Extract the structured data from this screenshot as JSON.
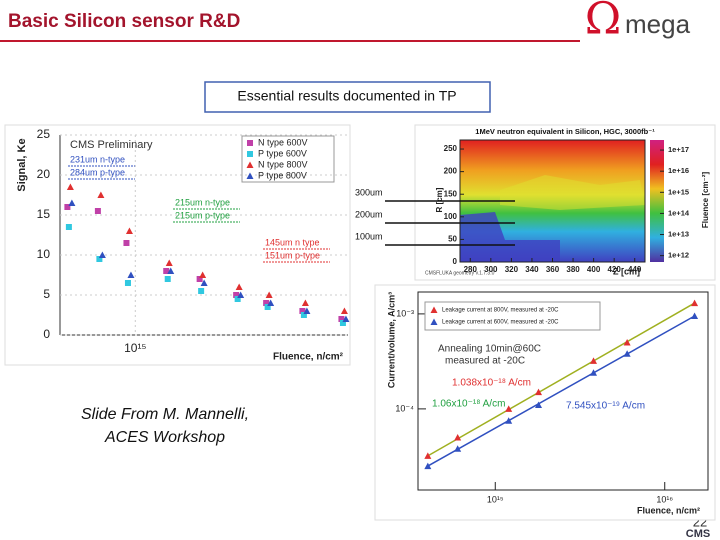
{
  "header": {
    "title": "Basic Silicon sensor R&D",
    "logo_symbol": "Ω",
    "logo_text": "mega"
  },
  "callout": "Essential results documented in TP",
  "credit": [
    "Slide From M. Mannelli,",
    "ACES Workshop"
  ],
  "page_number": "22",
  "footer_logo": "CMS",
  "depth_labels": [
    "300um",
    "200um",
    "100um"
  ],
  "signal_plot": {
    "type": "scatter",
    "ylabel": "Signal, Ke",
    "xlabel": "Fluence, n/cm²",
    "log_x": true,
    "xlim": [
      300000000000000.0,
      3e+16
    ],
    "xticks": [
      {
        "value": 1000000000000000.0,
        "label": "10¹⁵"
      }
    ],
    "ylim": [
      0,
      25
    ],
    "yticks": [
      0,
      5,
      10,
      15,
      20,
      25
    ],
    "grid": true,
    "x": [
      350000000000000.0,
      570000000000000.0,
      900000000000000.0,
      1700000000000000.0,
      2900000000000000.0,
      5200000000000000.0,
      8400000000000000.0,
      1.5e+16,
      2.8e+16
    ],
    "series": [
      {
        "name": "N type 600V",
        "color": "#c040a8",
        "marker": "square",
        "values": [
          16,
          15.5,
          11.5,
          8,
          7,
          5,
          4,
          3,
          2
        ]
      },
      {
        "name": "P type 600V",
        "color": "#30c8e0",
        "marker": "square",
        "values": [
          13.5,
          9.5,
          6.5,
          7,
          5.5,
          4.5,
          3.5,
          2.5,
          1.5
        ]
      },
      {
        "name": "N type 800V",
        "color": "#e03030",
        "marker": "triangle",
        "values": [
          18.5,
          17.5,
          13,
          9,
          7.5,
          6,
          5,
          4,
          3
        ]
      },
      {
        "name": "P type 800V",
        "color": "#3050c0",
        "marker": "triangle",
        "values": [
          16.5,
          10,
          7.5,
          8,
          6.5,
          5,
          4,
          3,
          2
        ]
      }
    ],
    "annotations": [
      {
        "text": "CMS Preliminary",
        "color": "#333333"
      },
      {
        "text": "231um n-type",
        "color": "#3050c0"
      },
      {
        "text": "284um p-type",
        "color": "#3050c0"
      },
      {
        "text": "215um n-type",
        "color": "#20a040"
      },
      {
        "text": "215um p-type",
        "color": "#20a040"
      },
      {
        "text": "145um n type",
        "color": "#e03030"
      },
      {
        "text": "151um p-type",
        "color": "#e03030"
      }
    ]
  },
  "fluence_map": {
    "type": "heatmap",
    "title": "1MeV neutron equivalent in Silicon, HGC, 3000fb⁻¹",
    "xlabel": "Z [cm]",
    "ylabel": "R [cm]",
    "colorbar_label": "Fluence [cm⁻²]",
    "footer": "CMSFLUKA geometry v.1.7.3.0",
    "xlim": [
      270,
      450
    ],
    "xticks": [
      280,
      300,
      320,
      340,
      360,
      380,
      400,
      420,
      440
    ],
    "ylim": [
      0,
      270
    ],
    "yticks": [
      0,
      50,
      100,
      150,
      200,
      250
    ],
    "log_color": true,
    "clim": [
      500000000000.0,
      3e+17
    ],
    "cticks": [
      {
        "value": 1e+17,
        "label": "1e+17"
      },
      {
        "value": 1e+16,
        "label": "1e+16"
      },
      {
        "value": 1000000000000000.0,
        "label": "1e+15"
      },
      {
        "value": 100000000000000.0,
        "label": "1e+14"
      },
      {
        "value": 10000000000000.0,
        "label": "1e+13"
      },
      {
        "value": 1000000000000.0,
        "label": "1e+12"
      }
    ]
  },
  "current_plot": {
    "type": "scatter",
    "ylabel": "Current/volume, A/cm³",
    "xlabel": "Fluence, n/cm²",
    "log_x": true,
    "log_y": true,
    "xlim": [
      350000000000000.0,
      1.8e+16
    ],
    "xticks": [
      {
        "value": 1000000000000000.0,
        "label": "10¹⁵"
      },
      {
        "value": 1e+16,
        "label": "10¹⁶"
      }
    ],
    "ylim": [
      1.4e-05,
      0.0017
    ],
    "yticks": [
      {
        "value": 0.0001,
        "label": "10⁻⁴"
      },
      {
        "value": 0.001,
        "label": "10⁻³"
      }
    ],
    "x": [
      400000000000000.0,
      600000000000000.0,
      1200000000000000.0,
      1800000000000000.0,
      3800000000000000.0,
      6000000000000000.0,
      1.5e+16
    ],
    "series": [
      {
        "name": "Leakage current at 800V, measured at -20C",
        "color": "#e03030",
        "marker": "triangle",
        "values": [
          3.2e-05,
          5e-05,
          0.0001,
          0.00015,
          0.00032,
          0.0005,
          0.0013
        ]
      },
      {
        "name": "Leakage current at 600V, measured at -20C",
        "color": "#3050c0",
        "marker": "triangle",
        "values": [
          2.5e-05,
          3.8e-05,
          7.5e-05,
          0.00011,
          0.00024,
          0.00038,
          0.00095
        ]
      }
    ],
    "annotations": [
      {
        "text": "Annealing 10min@60C",
        "color": "#333333"
      },
      {
        "text": "measured at -20C",
        "color": "#333333"
      },
      {
        "text": "1.038x10⁻¹⁸ A/cm",
        "color": "#e03030"
      },
      {
        "text": "1.06x10⁻¹⁸ A/cm",
        "color": "#20a040"
      },
      {
        "text": "7.545x10⁻¹⁹ A/cm",
        "color": "#3050c0"
      }
    ]
  }
}
